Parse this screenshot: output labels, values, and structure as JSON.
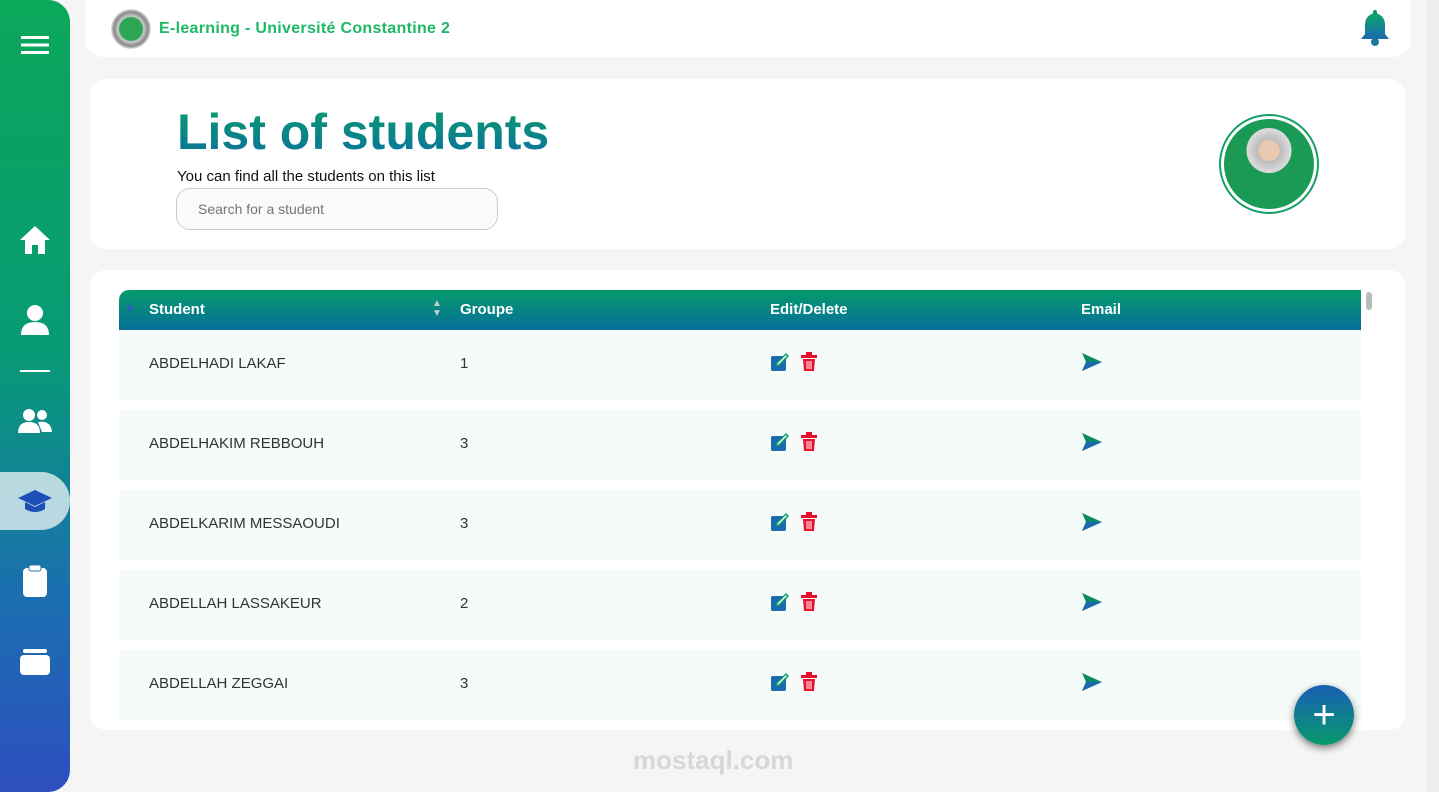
{
  "app": {
    "title": "E-learning - Université Constantine 2"
  },
  "sidebar": {
    "items": [
      {
        "icon": "menu-icon"
      },
      {
        "icon": "home-icon"
      },
      {
        "icon": "user-icon"
      },
      {
        "icon": "users-icon"
      },
      {
        "icon": "graduation-cap-icon",
        "active": true
      },
      {
        "icon": "clipboard-icon"
      },
      {
        "icon": "folder-icon"
      }
    ]
  },
  "header": {
    "title": "List of students",
    "subtitle": "You can find all the students on this list",
    "search_placeholder": "Search for a student"
  },
  "table": {
    "columns": [
      "Student",
      "Groupe",
      "Edit/Delete",
      "Email"
    ],
    "rows": [
      {
        "student": "ABDELHADI LAKAF",
        "groupe": "1"
      },
      {
        "student": "ABDELHAKIM REBBOUH",
        "groupe": "3"
      },
      {
        "student": "ABDELKARIM MESSAOUDI",
        "groupe": "3"
      },
      {
        "student": "ABDELLAH LASSAKEUR",
        "groupe": "2"
      },
      {
        "student": "ABDELLAH ZEGGAI",
        "groupe": "3"
      }
    ]
  },
  "fab": {
    "label": "+"
  },
  "watermark": "mostaql.com",
  "colors": {
    "accent_green": "#069a6b",
    "accent_blue": "#06709a",
    "delete_red": "#e8112d"
  }
}
